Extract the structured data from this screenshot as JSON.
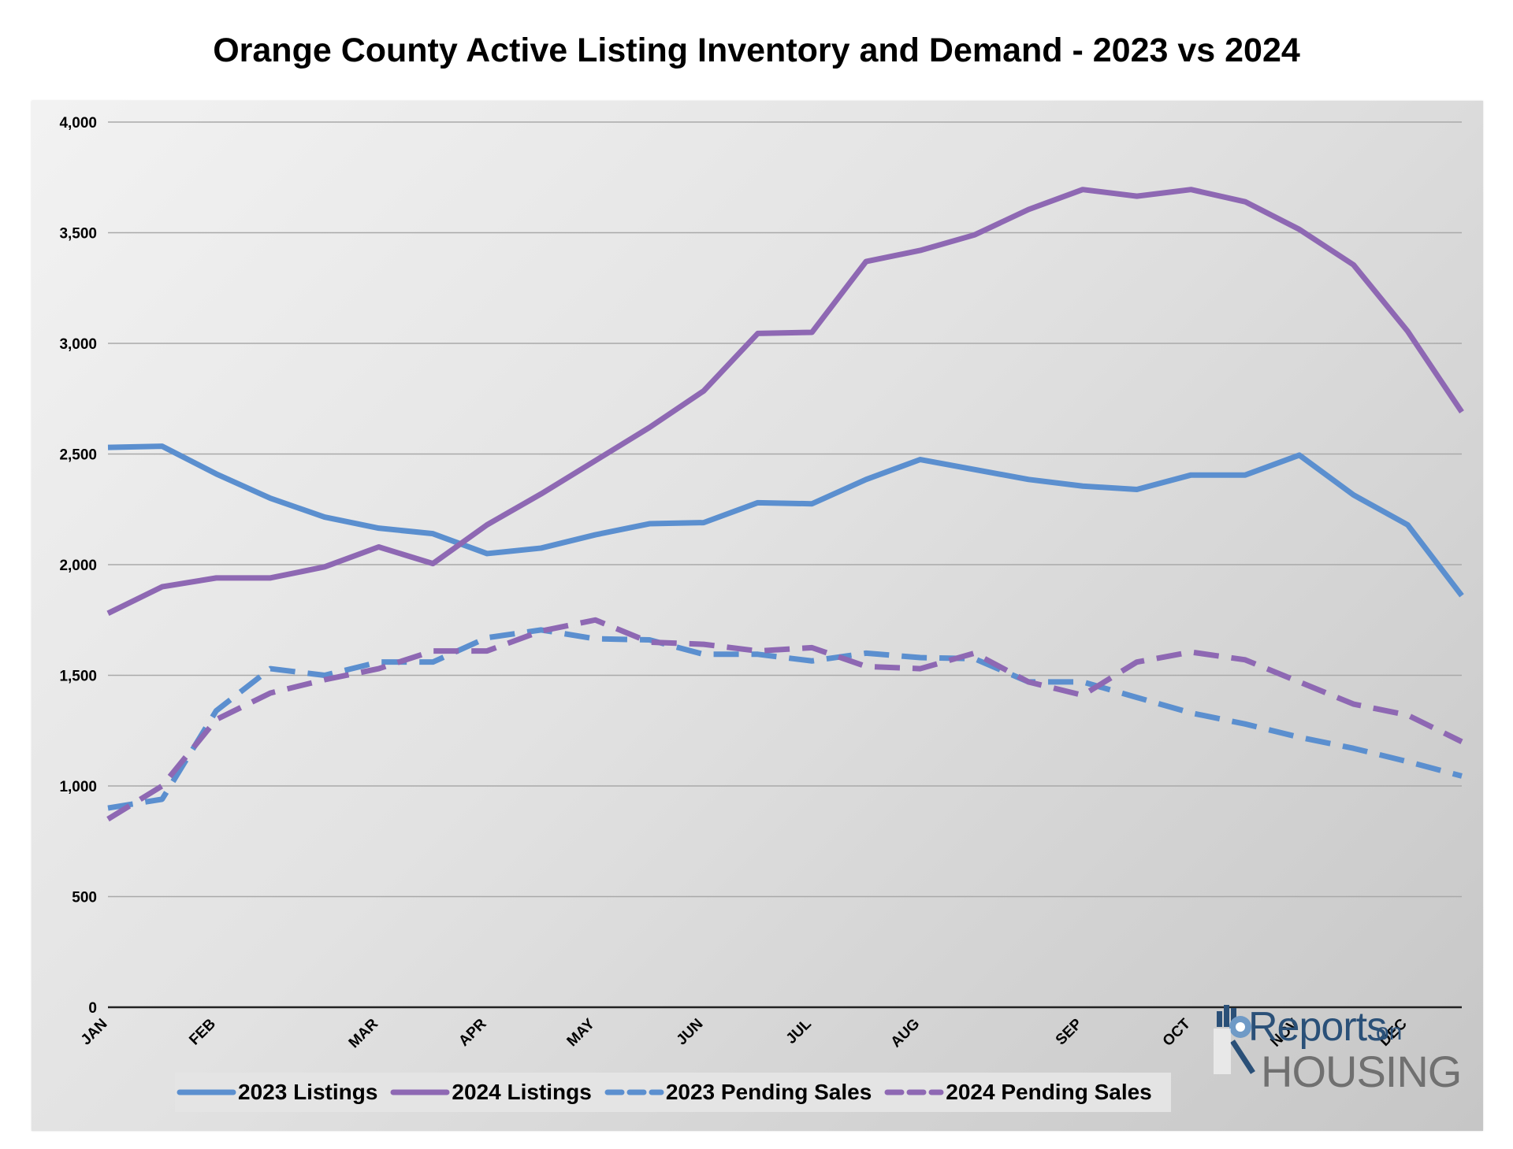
{
  "chart_data": {
    "type": "line",
    "title": "Orange County Active Listing Inventory and Demand - 2023 vs 2024",
    "ylim": [
      0,
      4000
    ],
    "yticks": [
      0,
      500,
      1000,
      1500,
      2000,
      2500,
      3000,
      3500,
      4000
    ],
    "ytick_labels": [
      "0",
      "500",
      "1,000",
      "1,500",
      "2,000",
      "2,500",
      "3,000",
      "3,500",
      "4,000"
    ],
    "xlim": [
      0,
      25
    ],
    "xticks": [
      {
        "label": "JAN",
        "x": 0
      },
      {
        "label": "FEB",
        "x": 2
      },
      {
        "label": "MAR",
        "x": 5
      },
      {
        "label": "APR",
        "x": 7
      },
      {
        "label": "MAY",
        "x": 9
      },
      {
        "label": "JUN",
        "x": 11
      },
      {
        "label": "JUL",
        "x": 13
      },
      {
        "label": "AUG",
        "x": 15
      },
      {
        "label": "SEP",
        "x": 18
      },
      {
        "label": "OCT",
        "x": 20
      },
      {
        "label": "NOV",
        "x": 22
      },
      {
        "label": "DEC",
        "x": 24
      }
    ],
    "grid": true,
    "legend_position": "bottom",
    "series": [
      {
        "name": "2023 Listings",
        "color": "#5b8fcf",
        "dashed": false,
        "values": [
          2530,
          2535,
          2410,
          2300,
          2215,
          2165,
          2140,
          2050,
          2075,
          2135,
          2185,
          2190,
          2280,
          2275,
          2385,
          2475,
          2430,
          2385,
          2355,
          2340,
          2405,
          2405,
          2495,
          2315,
          2180,
          1860
        ]
      },
      {
        "name": "2024 Listings",
        "color": "#8e68b3",
        "dashed": false,
        "values": [
          1780,
          1900,
          1940,
          1940,
          1990,
          2080,
          2005,
          2180,
          2320,
          2470,
          2620,
          2785,
          3045,
          3050,
          3370,
          3420,
          3490,
          3605,
          3695,
          3665,
          3695,
          3640,
          3515,
          3355,
          3055,
          2690
        ]
      },
      {
        "name": "2023 Pending Sales",
        "color": "#5b8fcf",
        "dashed": true,
        "values": [
          900,
          940,
          1340,
          1530,
          1500,
          1560,
          1560,
          1670,
          1705,
          1665,
          1660,
          1595,
          1595,
          1565,
          1600,
          1580,
          1575,
          1470,
          1470,
          1400,
          1330,
          1280,
          1220,
          1170,
          1110,
          1045
        ]
      },
      {
        "name": "2024 Pending Sales",
        "color": "#8e68b3",
        "dashed": true,
        "values": [
          850,
          1000,
          1300,
          1420,
          1480,
          1530,
          1610,
          1610,
          1700,
          1750,
          1650,
          1640,
          1610,
          1625,
          1540,
          1530,
          1600,
          1470,
          1410,
          1560,
          1605,
          1570,
          1470,
          1370,
          1320,
          1200
        ]
      }
    ]
  },
  "logo": {
    "reports": "Reports",
    "on": "on",
    "housing": "HOUSING"
  }
}
